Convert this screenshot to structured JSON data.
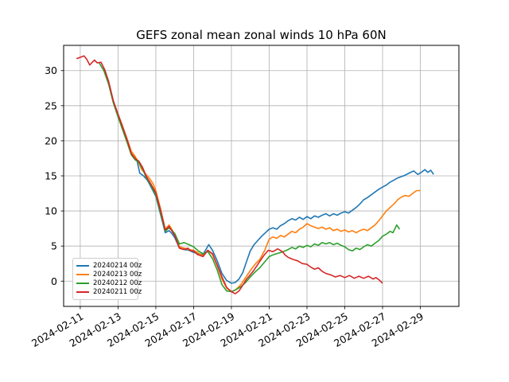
{
  "chart_data": {
    "type": "line",
    "title": "GEFS zonal mean zonal winds 10 hPa 60N",
    "xlabel": "",
    "ylabel": "",
    "x_unit": "days since 2024-02-11 00z",
    "xlim": [
      -0.88,
      20.04
    ],
    "ylim": [
      -3.6,
      33.6
    ],
    "x_ticks": [
      0,
      2,
      4,
      6,
      8,
      10,
      12,
      14,
      16,
      18
    ],
    "x_tick_labels": [
      "2024-02-11",
      "2024-02-13",
      "2024-02-15",
      "2024-02-17",
      "2024-02-19",
      "2024-02-21",
      "2024-02-23",
      "2024-02-25",
      "2024-02-27",
      "2024-02-29"
    ],
    "y_ticks": [
      0,
      5,
      10,
      15,
      20,
      25,
      30
    ],
    "y_tick_labels": [
      "0",
      "5",
      "10",
      "15",
      "20",
      "25",
      "30"
    ],
    "grid": true,
    "grid_color": "#b0b0b0",
    "background": "#ffffff",
    "legend_position": "lower left",
    "series": [
      {
        "name": "20240214 00z",
        "color": "#1f77b4",
        "points": [
          [
            3.0,
            17.2
          ],
          [
            3.15,
            15.4
          ],
          [
            3.35,
            15.0
          ],
          [
            3.55,
            14.4
          ],
          [
            3.75,
            13.4
          ],
          [
            4.0,
            12.1
          ],
          [
            4.25,
            9.5
          ],
          [
            4.5,
            6.9
          ],
          [
            4.7,
            7.2
          ],
          [
            4.85,
            6.8
          ],
          [
            5.0,
            6.2
          ],
          [
            5.25,
            4.7
          ],
          [
            5.5,
            4.5
          ],
          [
            5.75,
            4.4
          ],
          [
            6.0,
            4.1
          ],
          [
            6.25,
            3.9
          ],
          [
            6.5,
            3.8
          ],
          [
            6.8,
            5.2
          ],
          [
            7.0,
            4.4
          ],
          [
            7.25,
            2.9
          ],
          [
            7.5,
            1.1
          ],
          [
            7.75,
            0.1
          ],
          [
            8.0,
            -0.3
          ],
          [
            8.2,
            -0.2
          ],
          [
            8.4,
            0.3
          ],
          [
            8.6,
            1.2
          ],
          [
            8.8,
            2.8
          ],
          [
            9.0,
            4.3
          ],
          [
            9.2,
            5.2
          ],
          [
            9.4,
            5.8
          ],
          [
            9.6,
            6.4
          ],
          [
            9.8,
            6.9
          ],
          [
            10.0,
            7.4
          ],
          [
            10.2,
            7.6
          ],
          [
            10.4,
            7.4
          ],
          [
            10.6,
            7.9
          ],
          [
            10.8,
            8.2
          ],
          [
            11.0,
            8.6
          ],
          [
            11.2,
            8.9
          ],
          [
            11.4,
            8.7
          ],
          [
            11.6,
            9.1
          ],
          [
            11.8,
            8.8
          ],
          [
            12.0,
            9.2
          ],
          [
            12.2,
            8.9
          ],
          [
            12.4,
            9.3
          ],
          [
            12.6,
            9.1
          ],
          [
            12.8,
            9.4
          ],
          [
            13.0,
            9.6
          ],
          [
            13.2,
            9.3
          ],
          [
            13.4,
            9.6
          ],
          [
            13.6,
            9.4
          ],
          [
            13.8,
            9.7
          ],
          [
            14.0,
            9.9
          ],
          [
            14.2,
            9.7
          ],
          [
            14.4,
            10.1
          ],
          [
            14.6,
            10.5
          ],
          [
            14.8,
            11.0
          ],
          [
            15.0,
            11.6
          ],
          [
            15.2,
            11.9
          ],
          [
            15.4,
            12.3
          ],
          [
            15.6,
            12.7
          ],
          [
            15.8,
            13.1
          ],
          [
            16.0,
            13.4
          ],
          [
            16.2,
            13.7
          ],
          [
            16.4,
            14.1
          ],
          [
            16.6,
            14.4
          ],
          [
            16.8,
            14.7
          ],
          [
            17.0,
            14.9
          ],
          [
            17.2,
            15.1
          ],
          [
            17.4,
            15.4
          ],
          [
            17.65,
            15.7
          ],
          [
            17.87,
            15.2
          ],
          [
            18.05,
            15.5
          ],
          [
            18.24,
            15.9
          ],
          [
            18.4,
            15.5
          ],
          [
            18.55,
            15.8
          ],
          [
            18.7,
            15.2
          ]
        ]
      },
      {
        "name": "20240213 00z",
        "color": "#ff7f0e",
        "points": [
          [
            2.0,
            23.8
          ],
          [
            2.25,
            22.0
          ],
          [
            2.5,
            20.1
          ],
          [
            2.7,
            18.5
          ],
          [
            2.9,
            17.8
          ],
          [
            3.1,
            16.8
          ],
          [
            3.25,
            15.9
          ],
          [
            3.45,
            15.3
          ],
          [
            3.65,
            14.7
          ],
          [
            3.85,
            13.9
          ],
          [
            4.0,
            12.9
          ],
          [
            4.25,
            10.3
          ],
          [
            4.5,
            7.4
          ],
          [
            4.7,
            8.0
          ],
          [
            5.0,
            6.7
          ],
          [
            5.25,
            4.9
          ],
          [
            5.5,
            4.7
          ],
          [
            5.75,
            4.5
          ],
          [
            6.0,
            4.4
          ],
          [
            6.25,
            4.0
          ],
          [
            6.5,
            3.6
          ],
          [
            6.75,
            4.4
          ],
          [
            7.0,
            3.8
          ],
          [
            7.25,
            2.2
          ],
          [
            7.5,
            0.3
          ],
          [
            7.75,
            -1.0
          ],
          [
            8.0,
            -1.5
          ],
          [
            8.2,
            -1.3
          ],
          [
            8.5,
            -0.5
          ],
          [
            8.75,
            0.5
          ],
          [
            9.0,
            1.5
          ],
          [
            9.25,
            2.4
          ],
          [
            9.5,
            3.1
          ],
          [
            9.75,
            4.3
          ],
          [
            10.0,
            6.0
          ],
          [
            10.2,
            6.3
          ],
          [
            10.4,
            6.1
          ],
          [
            10.6,
            6.5
          ],
          [
            10.8,
            6.3
          ],
          [
            11.0,
            6.7
          ],
          [
            11.2,
            7.1
          ],
          [
            11.4,
            6.9
          ],
          [
            11.6,
            7.4
          ],
          [
            11.8,
            7.7
          ],
          [
            12.0,
            8.2
          ],
          [
            12.2,
            7.9
          ],
          [
            12.4,
            7.7
          ],
          [
            12.6,
            7.5
          ],
          [
            12.8,
            7.7
          ],
          [
            13.0,
            7.4
          ],
          [
            13.2,
            7.6
          ],
          [
            13.4,
            7.2
          ],
          [
            13.6,
            7.4
          ],
          [
            13.8,
            7.1
          ],
          [
            14.0,
            7.3
          ],
          [
            14.2,
            7.0
          ],
          [
            14.4,
            7.2
          ],
          [
            14.6,
            6.9
          ],
          [
            14.8,
            7.2
          ],
          [
            15.0,
            7.4
          ],
          [
            15.2,
            7.2
          ],
          [
            15.4,
            7.6
          ],
          [
            15.6,
            8.0
          ],
          [
            15.8,
            8.6
          ],
          [
            16.0,
            9.3
          ],
          [
            16.2,
            10.0
          ],
          [
            16.4,
            10.5
          ],
          [
            16.6,
            11.0
          ],
          [
            16.8,
            11.6
          ],
          [
            17.0,
            12.0
          ],
          [
            17.2,
            12.2
          ],
          [
            17.4,
            12.1
          ],
          [
            17.6,
            12.5
          ],
          [
            17.8,
            12.9
          ],
          [
            18.0,
            12.9
          ]
        ]
      },
      {
        "name": "20240212 00z",
        "color": "#2ca02c",
        "points": [
          [
            1.0,
            31.1
          ],
          [
            1.25,
            30.0
          ],
          [
            1.5,
            28.1
          ],
          [
            1.75,
            25.4
          ],
          [
            2.0,
            23.4
          ],
          [
            2.25,
            21.5
          ],
          [
            2.5,
            19.6
          ],
          [
            2.7,
            18.0
          ],
          [
            2.9,
            17.3
          ],
          [
            3.1,
            16.9
          ],
          [
            3.3,
            16.0
          ],
          [
            3.5,
            14.7
          ],
          [
            3.75,
            13.6
          ],
          [
            4.0,
            12.3
          ],
          [
            4.25,
            9.7
          ],
          [
            4.5,
            7.1
          ],
          [
            4.7,
            7.6
          ],
          [
            5.0,
            6.8
          ],
          [
            5.25,
            5.3
          ],
          [
            5.5,
            5.5
          ],
          [
            5.75,
            5.2
          ],
          [
            6.0,
            4.9
          ],
          [
            6.25,
            4.3
          ],
          [
            6.5,
            3.9
          ],
          [
            6.75,
            4.2
          ],
          [
            7.0,
            3.2
          ],
          [
            7.25,
            1.6
          ],
          [
            7.5,
            -0.5
          ],
          [
            7.75,
            -1.4
          ],
          [
            8.0,
            -1.5
          ],
          [
            8.25,
            -1.2
          ],
          [
            8.5,
            -0.8
          ],
          [
            8.75,
            -0.2
          ],
          [
            9.0,
            0.6
          ],
          [
            9.25,
            1.3
          ],
          [
            9.5,
            1.9
          ],
          [
            9.75,
            2.7
          ],
          [
            10.0,
            3.5
          ],
          [
            10.25,
            3.8
          ],
          [
            10.5,
            4.0
          ],
          [
            10.75,
            4.2
          ],
          [
            11.0,
            4.5
          ],
          [
            11.2,
            4.8
          ],
          [
            11.4,
            4.6
          ],
          [
            11.6,
            5.0
          ],
          [
            11.8,
            4.8
          ],
          [
            12.0,
            5.1
          ],
          [
            12.2,
            4.9
          ],
          [
            12.4,
            5.3
          ],
          [
            12.6,
            5.1
          ],
          [
            12.8,
            5.5
          ],
          [
            13.0,
            5.3
          ],
          [
            13.2,
            5.5
          ],
          [
            13.4,
            5.2
          ],
          [
            13.6,
            5.4
          ],
          [
            13.8,
            5.1
          ],
          [
            14.0,
            4.9
          ],
          [
            14.2,
            4.5
          ],
          [
            14.4,
            4.3
          ],
          [
            14.6,
            4.7
          ],
          [
            14.8,
            4.5
          ],
          [
            15.0,
            4.9
          ],
          [
            15.2,
            5.2
          ],
          [
            15.4,
            5.0
          ],
          [
            15.6,
            5.4
          ],
          [
            15.8,
            5.8
          ],
          [
            16.0,
            6.4
          ],
          [
            16.2,
            6.7
          ],
          [
            16.4,
            7.1
          ],
          [
            16.55,
            6.9
          ],
          [
            16.75,
            8.0
          ],
          [
            16.9,
            7.4
          ]
        ]
      },
      {
        "name": "20240211 00z",
        "color": "#d62728",
        "points": [
          [
            -0.2,
            31.7
          ],
          [
            0.0,
            31.9
          ],
          [
            0.2,
            32.1
          ],
          [
            0.35,
            31.6
          ],
          [
            0.5,
            30.8
          ],
          [
            0.75,
            31.5
          ],
          [
            0.9,
            31.1
          ],
          [
            1.1,
            31.2
          ],
          [
            1.3,
            30.1
          ],
          [
            1.5,
            28.5
          ],
          [
            1.75,
            25.7
          ],
          [
            2.0,
            23.8
          ],
          [
            2.25,
            21.9
          ],
          [
            2.5,
            20.0
          ],
          [
            2.7,
            18.2
          ],
          [
            2.9,
            17.5
          ],
          [
            3.1,
            17.1
          ],
          [
            3.3,
            16.2
          ],
          [
            3.5,
            14.9
          ],
          [
            3.75,
            13.8
          ],
          [
            4.0,
            12.6
          ],
          [
            4.25,
            10.1
          ],
          [
            4.5,
            7.3
          ],
          [
            4.7,
            7.8
          ],
          [
            5.0,
            6.5
          ],
          [
            5.25,
            4.7
          ],
          [
            5.5,
            4.5
          ],
          [
            5.7,
            4.7
          ],
          [
            5.85,
            4.3
          ],
          [
            6.0,
            4.3
          ],
          [
            6.2,
            3.8
          ],
          [
            6.5,
            3.5
          ],
          [
            6.75,
            4.4
          ],
          [
            7.0,
            3.9
          ],
          [
            7.25,
            2.3
          ],
          [
            7.5,
            0.6
          ],
          [
            7.75,
            -0.9
          ],
          [
            8.0,
            -1.5
          ],
          [
            8.2,
            -1.8
          ],
          [
            8.4,
            -1.4
          ],
          [
            8.6,
            -0.6
          ],
          [
            8.8,
            0.3
          ],
          [
            9.0,
            0.9
          ],
          [
            9.2,
            1.6
          ],
          [
            9.45,
            2.6
          ],
          [
            9.7,
            3.6
          ],
          [
            9.95,
            4.4
          ],
          [
            10.2,
            4.2
          ],
          [
            10.45,
            4.6
          ],
          [
            10.7,
            4.2
          ],
          [
            10.85,
            3.7
          ],
          [
            11.0,
            3.4
          ],
          [
            11.25,
            3.1
          ],
          [
            11.5,
            2.9
          ],
          [
            11.75,
            2.5
          ],
          [
            12.0,
            2.4
          ],
          [
            12.2,
            2.0
          ],
          [
            12.4,
            1.7
          ],
          [
            12.6,
            1.9
          ],
          [
            12.8,
            1.4
          ],
          [
            13.0,
            1.1
          ],
          [
            13.25,
            0.9
          ],
          [
            13.5,
            0.6
          ],
          [
            13.75,
            0.8
          ],
          [
            14.0,
            0.5
          ],
          [
            14.25,
            0.8
          ],
          [
            14.5,
            0.4
          ],
          [
            14.75,
            0.7
          ],
          [
            15.0,
            0.4
          ],
          [
            15.25,
            0.7
          ],
          [
            15.5,
            0.3
          ],
          [
            15.65,
            0.5
          ],
          [
            15.85,
            0.1
          ],
          [
            16.0,
            -0.3
          ]
        ]
      }
    ]
  }
}
